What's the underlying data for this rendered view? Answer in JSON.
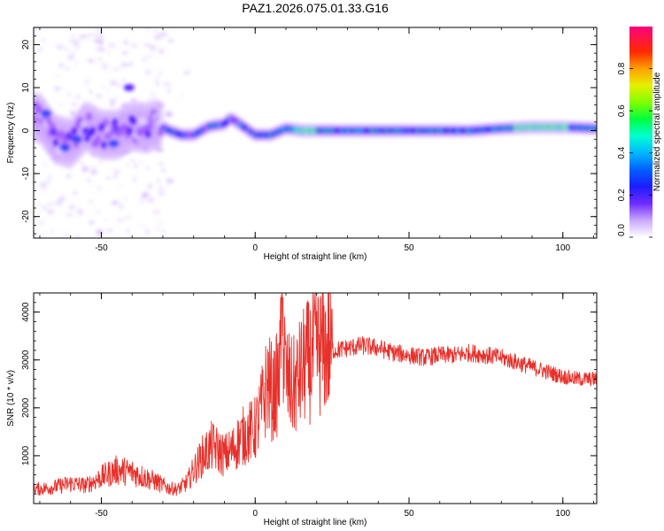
{
  "title": "PAZ1.2026.075.01.33.G16",
  "chart_data": [
    {
      "type": "heatmap",
      "xlabel": "Height of straight line (km)",
      "ylabel": "Frequency (Hz)",
      "xlim": [
        -72,
        111
      ],
      "ylim": [
        -25,
        24
      ],
      "xticks": [
        -50,
        0,
        50,
        100
      ],
      "yticks": [
        -20,
        -10,
        0,
        10,
        20
      ],
      "colorbar": {
        "label": "Normalized spectral amplitude",
        "range": [
          0,
          1
        ],
        "ticks": [
          "0.0",
          "0.2",
          "0.4",
          "0.6",
          "0.8"
        ],
        "colormap": [
          "#ffffff",
          "#b070ff",
          "#4000ff",
          "#0040ff",
          "#00c0ff",
          "#00ff80",
          "#40ff00",
          "#c0ff00",
          "#ffd000",
          "#ff6000",
          "#ff0000",
          "#ff0080"
        ]
      },
      "ridge": {
        "x": [
          -70,
          -65,
          -60,
          -55,
          -50,
          -45,
          -40,
          -35,
          -32,
          -28,
          -24,
          -20,
          -15,
          -10,
          -8,
          -5,
          0,
          5,
          10,
          15,
          20,
          30,
          40,
          50,
          60,
          70,
          80,
          90,
          100,
          111
        ],
        "y": [
          3,
          -2,
          -3,
          1,
          -1,
          -1,
          1,
          0.5,
          1.5,
          0,
          -1,
          -1,
          1,
          1.5,
          3,
          1.5,
          -1,
          -1,
          0.5,
          0,
          0,
          0,
          0,
          0,
          0,
          0,
          0.5,
          0.8,
          0.8,
          0.5
        ]
      }
    },
    {
      "type": "line",
      "xlabel": "Height of straight line (km)",
      "ylabel": "SNR (10 * v/v)",
      "xlim": [
        -72,
        111
      ],
      "ylim": [
        0,
        4400
      ],
      "xticks": [
        -50,
        0,
        50,
        100
      ],
      "yticks": [
        1000,
        2000,
        3000,
        4000
      ],
      "color": "#e8302a",
      "x": [
        -72,
        -68,
        -65,
        -60,
        -55,
        -50,
        -45,
        -40,
        -36,
        -32,
        -28,
        -25,
        -22,
        -20,
        -17,
        -14,
        -10,
        -7,
        -5,
        -3,
        0,
        2,
        4,
        6,
        8,
        9,
        10,
        11,
        12,
        13,
        14,
        16,
        18,
        20,
        23,
        26,
        30,
        35,
        40,
        45,
        50,
        55,
        60,
        65,
        70,
        75,
        80,
        85,
        90,
        95,
        100,
        105,
        111
      ],
      "y": [
        300,
        320,
        350,
        420,
        380,
        550,
        700,
        650,
        550,
        450,
        320,
        300,
        450,
        700,
        1000,
        1200,
        1000,
        1150,
        1350,
        1450,
        1550,
        1950,
        2550,
        2250,
        2700,
        3500,
        2650,
        2500,
        2400,
        2450,
        2600,
        2900,
        3000,
        3200,
        3250,
        3200,
        3250,
        3300,
        3250,
        3150,
        3100,
        3050,
        3100,
        3100,
        3150,
        3100,
        3050,
        2950,
        2850,
        2750,
        2650,
        2600,
        2600
      ]
    }
  ]
}
